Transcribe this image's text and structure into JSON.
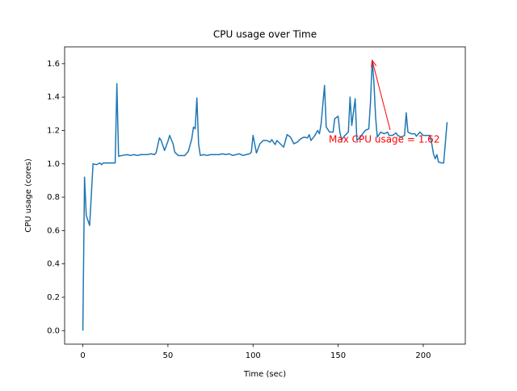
{
  "chart_data": {
    "type": "line",
    "title": "CPU usage over Time",
    "x_label": "Time (sec)",
    "y_label": "CPU usage (cores)",
    "color": "#1f77b4",
    "x": [
      0,
      1,
      2,
      4,
      6,
      8,
      9,
      10,
      11,
      12,
      14,
      16,
      18,
      19,
      20,
      21,
      23,
      26,
      28,
      30,
      32,
      34,
      36,
      38,
      40,
      42,
      43,
      45,
      46,
      48,
      50,
      51,
      53,
      54,
      56,
      58,
      60,
      62,
      64,
      65,
      66,
      67,
      68,
      69,
      71,
      73,
      75,
      78,
      80,
      82,
      84,
      86,
      88,
      90,
      92,
      94,
      96,
      98,
      99,
      100,
      102,
      104,
      106,
      108,
      110,
      111,
      113,
      114,
      116,
      118,
      120,
      122,
      124,
      126,
      128,
      130,
      132,
      133,
      134,
      136,
      138,
      139,
      140,
      142,
      143,
      145,
      147,
      148,
      150,
      151,
      152,
      154,
      156,
      157,
      158,
      160,
      161,
      163,
      164,
      166,
      168,
      169,
      170,
      171,
      172,
      173,
      175,
      177,
      179,
      180,
      182,
      184,
      185,
      187,
      189,
      190,
      191,
      193,
      195,
      196,
      198,
      200,
      202,
      204,
      205,
      206,
      207,
      208,
      209,
      211,
      212,
      214
    ],
    "values": [
      0.0,
      0.92,
      0.69,
      0.63,
      1.0,
      0.995,
      1.0,
      1.005,
      0.995,
      1.005,
      1.005,
      1.005,
      1.005,
      1.005,
      1.48,
      1.045,
      1.05,
      1.055,
      1.05,
      1.055,
      1.05,
      1.055,
      1.055,
      1.055,
      1.06,
      1.055,
      1.065,
      1.155,
      1.14,
      1.08,
      1.135,
      1.17,
      1.12,
      1.07,
      1.05,
      1.05,
      1.05,
      1.075,
      1.15,
      1.22,
      1.21,
      1.395,
      1.12,
      1.05,
      1.055,
      1.05,
      1.055,
      1.055,
      1.055,
      1.06,
      1.055,
      1.06,
      1.05,
      1.055,
      1.06,
      1.05,
      1.055,
      1.06,
      1.07,
      1.17,
      1.065,
      1.12,
      1.14,
      1.14,
      1.13,
      1.145,
      1.115,
      1.14,
      1.12,
      1.1,
      1.175,
      1.16,
      1.12,
      1.13,
      1.15,
      1.16,
      1.155,
      1.175,
      1.14,
      1.165,
      1.2,
      1.18,
      1.24,
      1.47,
      1.22,
      1.19,
      1.19,
      1.27,
      1.285,
      1.19,
      1.145,
      1.17,
      1.19,
      1.4,
      1.23,
      1.39,
      1.14,
      1.16,
      1.175,
      1.2,
      1.21,
      1.37,
      1.62,
      1.49,
      1.28,
      1.16,
      1.19,
      1.18,
      1.19,
      1.17,
      1.17,
      1.185,
      1.17,
      1.16,
      1.17,
      1.305,
      1.19,
      1.18,
      1.18,
      1.165,
      1.19,
      1.17,
      1.17,
      1.17,
      1.12,
      1.06,
      1.03,
      1.055,
      1.01,
      1.005,
      1.005,
      1.25
    ],
    "xlim": [
      -10.7,
      224.7
    ],
    "ylim": [
      -0.081,
      1.701
    ],
    "xticks": [
      0,
      50,
      100,
      150,
      200
    ],
    "yticks": [
      {
        "value": 0,
        "label": "0.0"
      },
      0.2,
      0.4,
      0.6,
      0.8,
      {
        "value": 1,
        "label": "1.0"
      },
      1.2,
      1.4,
      1.6
    ],
    "annotation": {
      "text": "Max CPU usage = 1.62",
      "color": "#ff0000"
    }
  }
}
